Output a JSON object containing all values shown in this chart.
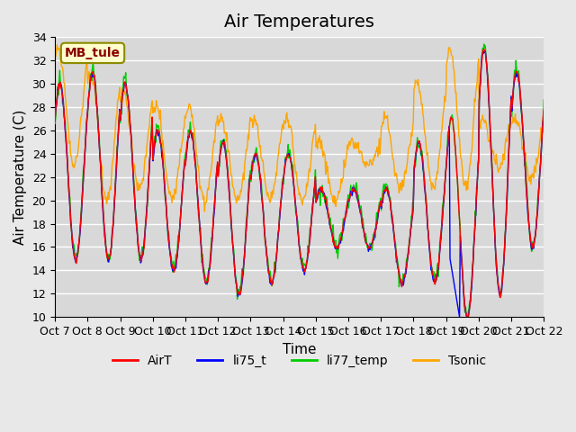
{
  "title": "Air Temperatures",
  "xlabel": "Time",
  "ylabel": "Air Temperature (C)",
  "ylim": [
    10,
    34
  ],
  "yticks": [
    10,
    12,
    14,
    16,
    18,
    20,
    22,
    24,
    26,
    28,
    30,
    32,
    34
  ],
  "x_labels": [
    "Oct 7",
    "Oct 8",
    "Oct 9",
    "Oct 10",
    "Oct 11",
    "Oct 12",
    "Oct 13",
    "Oct 14",
    "Oct 15",
    "Oct 16",
    "Oct 17",
    "Oct 18",
    "Oct 19",
    "Oct 20",
    "Oct 21",
    "Oct 22"
  ],
  "colors": {
    "AirT": "#ff0000",
    "li75_t": "#0000ff",
    "li77_temp": "#00cc00",
    "Tsonic": "#ffa500"
  },
  "annotation_text": "MB_tule",
  "annotation_color": "#8b0000",
  "annotation_bg": "#ffffcc",
  "bg_color": "#e8e8e8",
  "plot_bg": "#d8d8d8",
  "grid_color": "#ffffff",
  "title_fontsize": 14,
  "axis_fontsize": 11,
  "tick_fontsize": 9,
  "legend_fontsize": 10,
  "n_days": 15,
  "pts_per_day": 48
}
